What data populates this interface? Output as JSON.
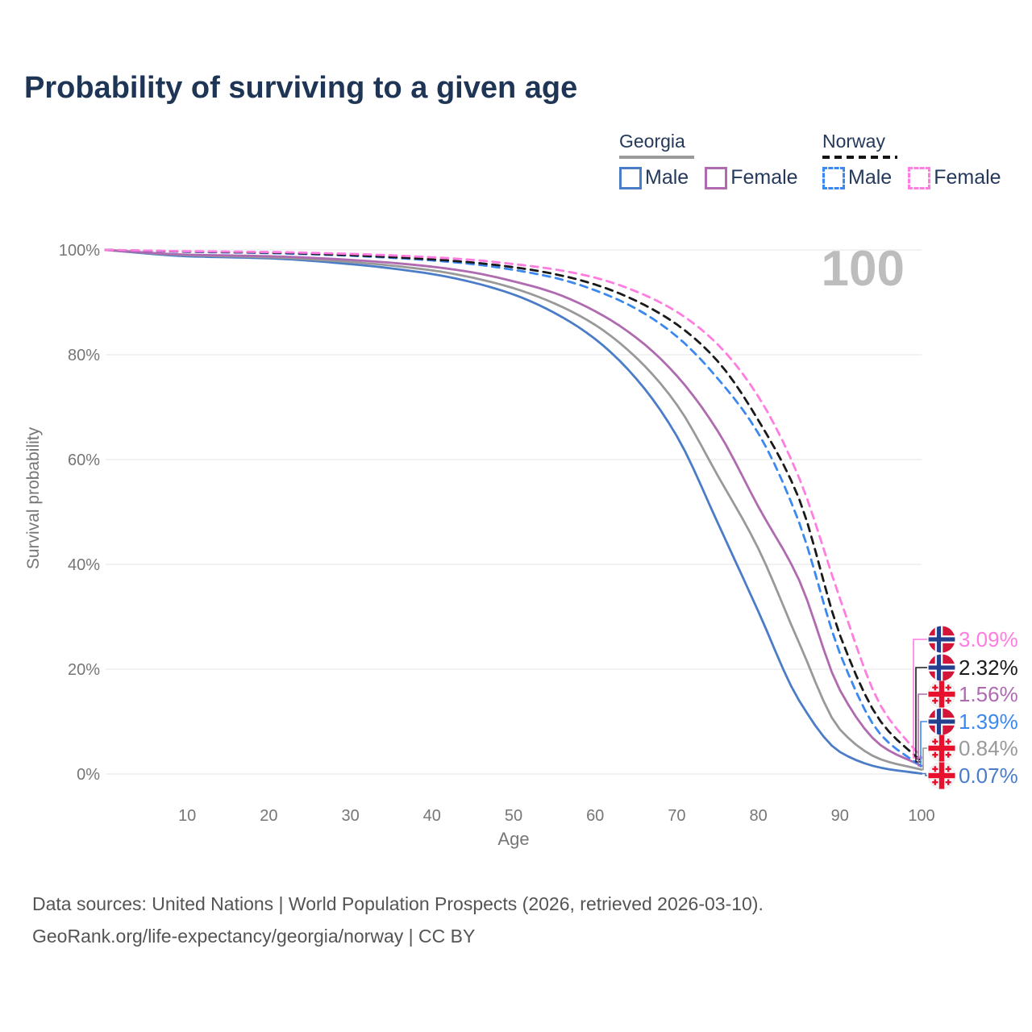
{
  "title": "Probability of surviving to a given age",
  "watermark": "100",
  "legend": {
    "groups": [
      {
        "country": "Georgia",
        "underline_style": "solid",
        "underline_color": "#9a9a9a",
        "items": [
          {
            "label": "Male",
            "color": "#4a7cc7",
            "dashed": false
          },
          {
            "label": "Female",
            "color": "#b06ab0",
            "dashed": false
          }
        ]
      },
      {
        "country": "Norway",
        "underline_style": "dashed",
        "underline_color": "#141414",
        "items": [
          {
            "label": "Male",
            "color": "#3b88f0",
            "dashed": true
          },
          {
            "label": "Female",
            "color": "#ff7ce0",
            "dashed": true
          }
        ]
      }
    ]
  },
  "chart_data": {
    "type": "line",
    "title": "Probability of surviving to a given age",
    "xlabel": "Age",
    "ylabel": "Survival probability",
    "xlim": [
      0,
      100
    ],
    "ylim": [
      0,
      100
    ],
    "grid": "horizontal",
    "x_ticks": [
      10,
      20,
      30,
      40,
      50,
      60,
      70,
      80,
      90,
      100
    ],
    "y_ticks": [
      {
        "value": 0,
        "label": "0%"
      },
      {
        "value": 20,
        "label": "20%"
      },
      {
        "value": 40,
        "label": "40%"
      },
      {
        "value": 60,
        "label": "60%"
      },
      {
        "value": 80,
        "label": "80%"
      },
      {
        "value": 100,
        "label": "100%"
      }
    ],
    "x": [
      0,
      10,
      20,
      30,
      40,
      45,
      50,
      55,
      60,
      65,
      70,
      75,
      80,
      85,
      90,
      95,
      100
    ],
    "series": [
      {
        "name": "Georgia Male",
        "country": "Georgia",
        "sex": "Male",
        "color": "#4a7cc7",
        "dashed": false,
        "flag": "georgia",
        "end_label": "0.07%",
        "values": [
          100,
          98.8,
          98.4,
          97.3,
          95.4,
          93.8,
          91.5,
          88.0,
          83.0,
          75.5,
          64.5,
          48.0,
          31.0,
          14.0,
          4.2,
          1.2,
          0.07
        ]
      },
      {
        "name": "Georgia",
        "country": "Georgia",
        "sex": "Both",
        "color": "#999999",
        "dashed": false,
        "flag": "georgia",
        "end_label": "0.84%",
        "values": [
          100,
          99.0,
          98.6,
          97.7,
          96.1,
          94.7,
          92.7,
          89.8,
          85.7,
          79.5,
          70.5,
          57.0,
          43.0,
          25.0,
          8.5,
          2.8,
          0.84
        ]
      },
      {
        "name": "Georgia Female",
        "country": "Georgia",
        "sex": "Female",
        "color": "#b06ab0",
        "dashed": false,
        "flag": "georgia",
        "end_label": "1.56%",
        "values": [
          100,
          99.1,
          98.8,
          98.1,
          96.8,
          95.7,
          94.0,
          91.8,
          88.3,
          83.3,
          76.0,
          65.5,
          51.0,
          37.0,
          16.0,
          5.5,
          1.56
        ]
      },
      {
        "name": "Norway Male",
        "country": "Norway",
        "sex": "Male",
        "color": "#3b88f0",
        "dashed": true,
        "flag": "norway",
        "end_label": "1.39%",
        "values": [
          100,
          99.65,
          99.4,
          98.9,
          98.0,
          97.3,
          96.2,
          94.7,
          92.3,
          88.8,
          83.5,
          75.5,
          65.0,
          48.0,
          23.0,
          7.5,
          1.39
        ]
      },
      {
        "name": "Norway",
        "country": "Norway",
        "sex": "Both",
        "color": "#1a1a1a",
        "dashed": true,
        "flag": "norway",
        "end_label": "2.32%",
        "values": [
          100,
          99.7,
          99.5,
          99.0,
          98.2,
          97.6,
          96.7,
          95.4,
          93.4,
          90.3,
          85.8,
          78.8,
          67.5,
          52.5,
          26.5,
          10.0,
          2.32
        ]
      },
      {
        "name": "Norway Female",
        "country": "Norway",
        "sex": "Female",
        "color": "#ff7ce0",
        "dashed": true,
        "flag": "norway",
        "end_label": "3.09%",
        "values": [
          100,
          99.75,
          99.6,
          99.25,
          98.6,
          98.1,
          97.3,
          96.3,
          94.7,
          92.1,
          88.2,
          82.0,
          72.0,
          56.5,
          33.5,
          13.0,
          3.09
        ]
      }
    ]
  },
  "footer": {
    "line1": "Data sources: United Nations | World Population Prospects (2026, retrieved 2026-03-10).",
    "line2": "GeoRank.org/life-expectancy/georgia/norway | CC BY"
  }
}
